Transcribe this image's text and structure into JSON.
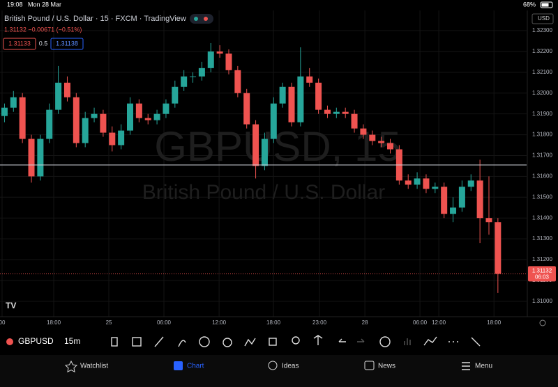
{
  "status_bar": {
    "time": "19:08",
    "date": "Mon 28 Mar",
    "battery": "68%"
  },
  "header": {
    "title": "British Pound / U.S. Dollar · 15 · FXCM · TradingView",
    "quote": "1.31132 −0.00671 (−0.51%)",
    "sell": "1.31133",
    "spread": "0.5",
    "buy": "1.31138",
    "currency": "USD"
  },
  "chart_data": {
    "type": "candlestick",
    "watermark_symbol": "GBPUSD, 15",
    "watermark_name": "British Pound / U.S. Dollar",
    "up_color": "#26a69a",
    "down_color": "#ef5350",
    "open": [
      1.3189,
      1.3193,
      1.3198,
      1.3178,
      1.316,
      1.3178,
      1.3192,
      1.3205,
      1.3198,
      1.3176,
      1.3188,
      1.319,
      1.3181,
      1.3175,
      1.3182,
      1.3195,
      1.3188,
      1.3187,
      1.319,
      1.3195,
      1.3203,
      1.3208,
      1.3208,
      1.3212,
      1.322,
      1.3219,
      1.3211,
      1.32,
      1.3185,
      1.3165,
      1.3178,
      1.3195,
      1.3203,
      1.3186,
      1.3208,
      1.3205,
      1.3192,
      1.319,
      1.3191,
      1.319,
      1.3183,
      1.318,
      1.3177,
      1.3176,
      1.3173,
      1.3158,
      1.3156,
      1.3159,
      1.3154,
      1.3155,
      1.3142,
      1.3145,
      1.3155,
      1.3158,
      1.314,
      1.3138
    ],
    "high": [
      1.3195,
      1.3201,
      1.32,
      1.318,
      1.318,
      1.3195,
      1.3213,
      1.3208,
      1.32,
      1.3191,
      1.3193,
      1.3192,
      1.3184,
      1.3185,
      1.3198,
      1.3197,
      1.319,
      1.3192,
      1.3197,
      1.3206,
      1.3211,
      1.321,
      1.3215,
      1.3224,
      1.3223,
      1.3221,
      1.3213,
      1.3202,
      1.3187,
      1.3181,
      1.3198,
      1.3205,
      1.3205,
      1.3222,
      1.3212,
      1.3207,
      1.3194,
      1.3193,
      1.3193,
      1.3192,
      1.3185,
      1.3182,
      1.3179,
      1.3178,
      1.3175,
      1.3161,
      1.3162,
      1.3161,
      1.3157,
      1.3157,
      1.315,
      1.3158,
      1.3161,
      1.3168,
      1.316,
      1.314
    ],
    "low": [
      1.3186,
      1.3191,
      1.3176,
      1.3157,
      1.3158,
      1.3176,
      1.319,
      1.3196,
      1.3174,
      1.3174,
      1.3186,
      1.3179,
      1.3172,
      1.3173,
      1.318,
      1.3186,
      1.3185,
      1.3185,
      1.3188,
      1.3193,
      1.3201,
      1.3205,
      1.3206,
      1.321,
      1.3217,
      1.3209,
      1.3198,
      1.3183,
      1.3159,
      1.3163,
      1.3176,
      1.3193,
      1.3184,
      1.3184,
      1.3203,
      1.319,
      1.3188,
      1.3188,
      1.3188,
      1.3181,
      1.3178,
      1.3175,
      1.3174,
      1.3171,
      1.3156,
      1.3154,
      1.3154,
      1.3152,
      1.3152,
      1.314,
      1.3138,
      1.3143,
      1.3153,
      1.3128,
      1.3132,
      1.3104
    ],
    "close": [
      1.3193,
      1.3198,
      1.3178,
      1.316,
      1.3178,
      1.3192,
      1.3205,
      1.3198,
      1.3176,
      1.3188,
      1.319,
      1.3181,
      1.3175,
      1.3182,
      1.3195,
      1.3188,
      1.3187,
      1.319,
      1.3195,
      1.3203,
      1.3208,
      1.3208,
      1.3212,
      1.322,
      1.3219,
      1.3211,
      1.32,
      1.3185,
      1.3165,
      1.3178,
      1.3195,
      1.3203,
      1.3186,
      1.3208,
      1.3205,
      1.3192,
      1.319,
      1.3191,
      1.319,
      1.3183,
      1.318,
      1.3177,
      1.3176,
      1.3173,
      1.3158,
      1.3156,
      1.3159,
      1.3154,
      1.3155,
      1.3142,
      1.3145,
      1.3155,
      1.3158,
      1.314,
      1.3138,
      1.31132
    ],
    "ylim": [
      1.30926,
      1.32397
    ],
    "yticks": [
      {
        "value": 1.31,
        "label": "1.31000"
      },
      {
        "value": 1.311,
        "label": "1.31100"
      },
      {
        "value": 1.312,
        "label": "1.31200"
      },
      {
        "value": 1.313,
        "label": "1.31300"
      },
      {
        "value": 1.314,
        "label": "1.31400"
      },
      {
        "value": 1.315,
        "label": "1.31500"
      },
      {
        "value": 1.316,
        "label": "1.31600"
      },
      {
        "value": 1.317,
        "label": "1.31700"
      },
      {
        "value": 1.318,
        "label": "1.31800"
      },
      {
        "value": 1.319,
        "label": "1.31900"
      },
      {
        "value": 1.32,
        "label": "1.32000"
      },
      {
        "value": 1.321,
        "label": "1.32100"
      },
      {
        "value": 1.322,
        "label": "1.32200"
      },
      {
        "value": 1.323,
        "label": "1.32300"
      }
    ],
    "xlim": [
      -0.5,
      58.2
    ],
    "xticks": [
      {
        "value": -0.27,
        "label": "00"
      },
      {
        "value": 5.49,
        "label": "18:00"
      },
      {
        "value": 11.63,
        "label": "25"
      },
      {
        "value": 17.77,
        "label": "06:00"
      },
      {
        "value": 23.92,
        "label": "12:00"
      },
      {
        "value": 29.98,
        "label": "18:00"
      },
      {
        "value": 35.11,
        "label": "23:00"
      },
      {
        "value": 40.17,
        "label": "28"
      },
      {
        "value": 46.31,
        "label": "06:00"
      },
      {
        "value": 48.41,
        "label": "12:00"
      },
      {
        "value": 54.56,
        "label": "18:00"
      }
    ],
    "hline": 1.31655,
    "price_label": "1.31132",
    "countdown": "06:03"
  },
  "toolbar": {
    "symbol": "GBPUSD",
    "interval": "15m"
  },
  "nav": [
    "Watchlist",
    "Chart",
    "Ideas",
    "News",
    "Menu"
  ]
}
